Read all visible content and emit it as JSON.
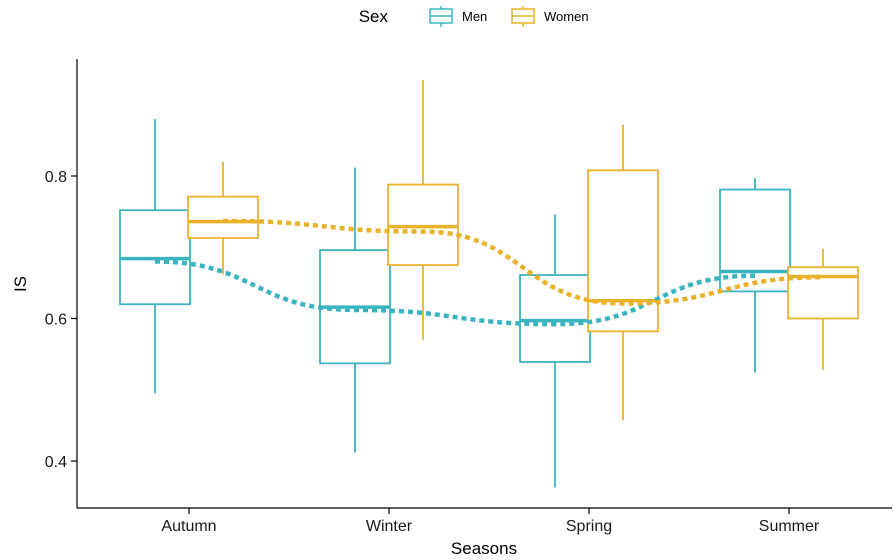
{
  "chart_data": {
    "type": "box",
    "xlabel": "Seasons",
    "ylabel": "IS",
    "ylim": [
      0.34,
      0.97
    ],
    "yticks": [
      0.4,
      0.6,
      0.8
    ],
    "ytick_labels": [
      "0.4",
      "0.6",
      "0.8"
    ],
    "categories": [
      "Autumn",
      "Winter",
      "Spring",
      "Summer"
    ],
    "legend": {
      "title": "Sex",
      "position": "top"
    },
    "series": [
      {
        "name": "Men",
        "color": "#3ab5c0",
        "boxes": [
          {
            "min": 0.495,
            "q1": 0.62,
            "median": 0.684,
            "q3": 0.752,
            "max": 0.88
          },
          {
            "min": 0.412,
            "q1": 0.537,
            "median": 0.616,
            "q3": 0.696,
            "max": 0.812
          },
          {
            "min": 0.363,
            "q1": 0.539,
            "median": 0.597,
            "q3": 0.661,
            "max": 0.746
          },
          {
            "min": 0.524,
            "q1": 0.638,
            "median": 0.666,
            "q3": 0.781,
            "max": 0.797
          }
        ],
        "trend": [
          0.68,
          0.612,
          0.592,
          0.66
        ]
      },
      {
        "name": "Women",
        "color": "#e9b22a",
        "boxes": [
          {
            "min": 0.662,
            "q1": 0.713,
            "median": 0.736,
            "q3": 0.771,
            "max": 0.82
          },
          {
            "min": 0.57,
            "q1": 0.675,
            "median": 0.729,
            "q3": 0.788,
            "max": 0.935
          },
          {
            "min": 0.457,
            "q1": 0.582,
            "median": 0.625,
            "q3": 0.808,
            "max": 0.872
          },
          {
            "min": 0.528,
            "q1": 0.6,
            "median": 0.659,
            "q3": 0.672,
            "max": 0.698
          }
        ],
        "trend": [
          0.737,
          0.722,
          0.621,
          0.658
        ]
      }
    ]
  }
}
